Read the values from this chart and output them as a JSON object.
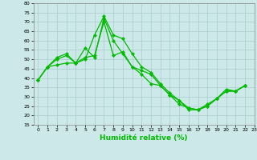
{
  "xlabel": "Humidité relative (%)",
  "bg_color": "#cce8e8",
  "grid_color": "#aacccc",
  "line_color": "#00bb00",
  "xlim": [
    -0.5,
    23.0
  ],
  "ylim": [
    15,
    80
  ],
  "yticks": [
    15,
    20,
    25,
    30,
    35,
    40,
    45,
    50,
    55,
    60,
    65,
    70,
    75,
    80
  ],
  "xticks": [
    0,
    1,
    2,
    3,
    4,
    5,
    6,
    7,
    8,
    9,
    10,
    11,
    12,
    13,
    14,
    15,
    16,
    17,
    18,
    19,
    20,
    21,
    22,
    23
  ],
  "series": [
    [
      39,
      46,
      51,
      53,
      48,
      50,
      63,
      73,
      63,
      61,
      53,
      46,
      43,
      37,
      32,
      28,
      23,
      23,
      25,
      29,
      33,
      33,
      36
    ],
    [
      39,
      46,
      47,
      48,
      48,
      51,
      52,
      70,
      52,
      54,
      46,
      42,
      37,
      36,
      31,
      28,
      24,
      23,
      25,
      29,
      34,
      33,
      36
    ],
    [
      39,
      46,
      50,
      52,
      48,
      56,
      51,
      72,
      60,
      53,
      46,
      44,
      42,
      36,
      31,
      26,
      24,
      23,
      26,
      29,
      33,
      33,
      36
    ]
  ],
  "xlabel_fontsize": 6.5,
  "tick_fontsize": 4.5,
  "linewidth": 0.9,
  "markersize": 2.2
}
